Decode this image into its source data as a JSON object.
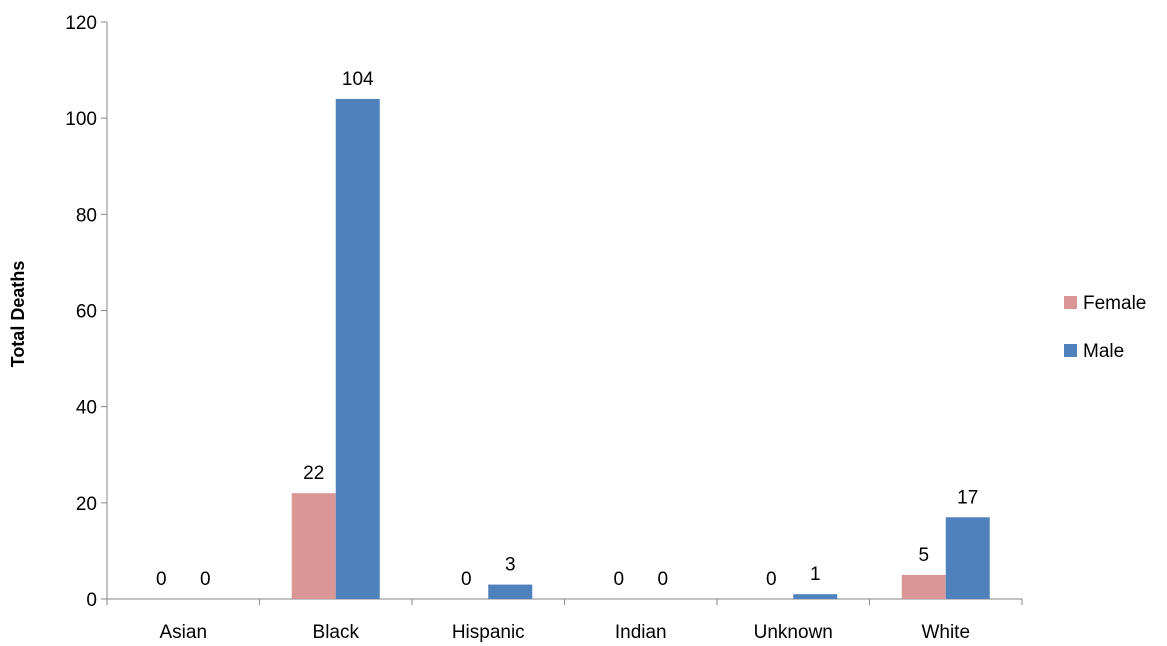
{
  "chart_data": {
    "type": "bar",
    "title": "",
    "xlabel": "",
    "ylabel": "Total Deaths",
    "categories": [
      "Asian",
      "Black",
      "Hispanic",
      "Indian",
      "Unknown",
      "White"
    ],
    "series": [
      {
        "name": "Female",
        "color": "#d99694",
        "values": [
          0,
          22,
          0,
          0,
          0,
          5
        ]
      },
      {
        "name": "Male",
        "color": "#4f81bd",
        "values": [
          0,
          104,
          3,
          0,
          1,
          17
        ]
      }
    ],
    "ylim": [
      0,
      120
    ],
    "yticks": [
      0,
      20,
      40,
      60,
      80,
      100,
      120
    ],
    "grid": false,
    "legend_position": "right"
  }
}
